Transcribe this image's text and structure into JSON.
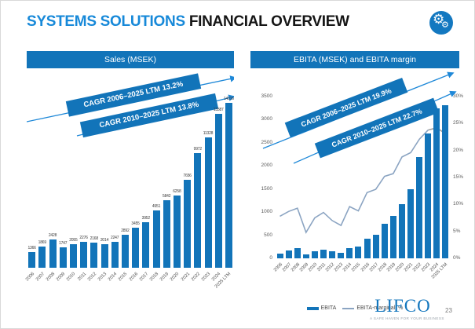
{
  "title": {
    "primary": "SYSTEMS SOLUTIONS",
    "secondary": "FINANCIAL OVERVIEW"
  },
  "page_number": "23",
  "logo": {
    "name": "LIFCO",
    "tagline": "A SAFE HAVEN FOR YOUR BUSINESS"
  },
  "icons": {
    "badge": "gears-icon"
  },
  "colors": {
    "brand_blue": "#1274b9",
    "title_blue": "#1789d9",
    "arrow_blue": "#1e88d8",
    "margin_line": "#8ba4c2",
    "margin_line_end": "#9f9f9f",
    "axis_text": "#595959"
  },
  "chart_data": [
    {
      "type": "bar",
      "title": "Sales (MSEK)",
      "categories": [
        "2006",
        "2007",
        "2008",
        "2009",
        "2010",
        "2011",
        "2012",
        "2013",
        "2014",
        "2015",
        "2016",
        "2017",
        "2018",
        "2019",
        "2020",
        "2021",
        "2022",
        "2023",
        "2024",
        "2025 LTM"
      ],
      "values": [
        1366,
        1869,
        2428,
        1747,
        2055,
        2276,
        2168,
        2014,
        2247,
        2892,
        3455,
        3952,
        4951,
        5842,
        6258,
        7656,
        9972,
        11328,
        13387,
        14316
      ],
      "value_labels_visible": true,
      "xlabel": "",
      "ylabel": "",
      "ylim": [
        0,
        14500
      ],
      "grid": false,
      "legend_position": "none",
      "annotations": [
        "CAGR 2006–2025 LTM 13.2%",
        "CAGR 2010–2025 LTM 13.8%"
      ]
    },
    {
      "type": "bar+line",
      "title": "EBITA (MSEK) and EBITA margin",
      "categories": [
        "2006",
        "2007",
        "2008",
        "2009",
        "2010",
        "2011",
        "2012",
        "2013",
        "2014",
        "2015",
        "2016",
        "2017",
        "2018",
        "2019",
        "2020",
        "2021",
        "2022",
        "2023",
        "2024",
        "2025 LTM"
      ],
      "series": [
        {
          "name": "EBITA",
          "type": "bar",
          "axis": "left",
          "values": [
            107,
            163,
            226,
            84,
            154,
            193,
            152,
            123,
            216,
            255,
            421,
            505,
            753,
            917,
            1176,
            1500,
            2199,
            2696,
            3240,
            3305
          ]
        },
        {
          "name": "EBITA-marginal, %",
          "type": "line",
          "axis": "right",
          "values": [
            7.8,
            8.7,
            9.3,
            4.8,
            7.5,
            8.5,
            7.0,
            6.1,
            9.6,
            8.8,
            12.2,
            12.8,
            15.2,
            15.7,
            18.8,
            19.6,
            22.1,
            23.8,
            24.2,
            23.1
          ]
        }
      ],
      "left_axis": {
        "ticks": [
          0,
          500,
          1000,
          1500,
          2000,
          2500,
          3000,
          3500
        ],
        "range": [
          0,
          3500
        ]
      },
      "right_axis": {
        "ticks": [
          "0%",
          "5%",
          "10%",
          "15%",
          "20%",
          "25%",
          "30%"
        ],
        "range": [
          0,
          30
        ]
      },
      "grid": false,
      "legend_position": "bottom",
      "annotations": [
        "CAGR 2006–2025 LTM 19.9%",
        "CAGR 2010–2025 LTM 22.7%"
      ]
    }
  ]
}
